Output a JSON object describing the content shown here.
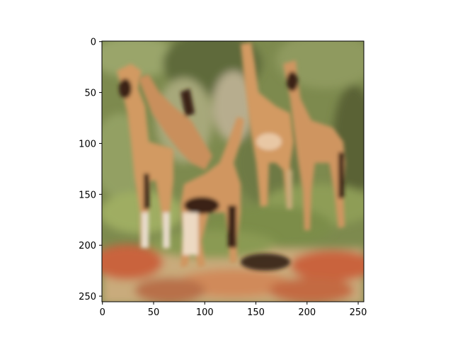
{
  "chart_data": {
    "type": "heatmap",
    "title": "",
    "xlabel": "",
    "ylabel": "",
    "xlim": [
      0,
      255
    ],
    "ylim": [
      255,
      0
    ],
    "y_axis_inverted": true,
    "grid": false,
    "legend": "none",
    "image_content": "blurry generated photo of several giraffes standing in green vegetation",
    "x_ticks": [
      {
        "value": 0,
        "label": "0"
      },
      {
        "value": 50,
        "label": "50"
      },
      {
        "value": 100,
        "label": "100"
      },
      {
        "value": 150,
        "label": "150"
      },
      {
        "value": 200,
        "label": "200"
      },
      {
        "value": 250,
        "label": "250"
      }
    ],
    "y_ticks": [
      {
        "value": 0,
        "label": "0"
      },
      {
        "value": 50,
        "label": "50"
      },
      {
        "value": 100,
        "label": "100"
      },
      {
        "value": 150,
        "label": "150"
      },
      {
        "value": 200,
        "label": "200"
      },
      {
        "value": 250,
        "label": "250"
      }
    ]
  },
  "colors": {
    "axis": "#000000",
    "background": "#ffffff",
    "foliage_dark": "#5f6b3a",
    "foliage_light": "#9aa56a",
    "giraffe_body": "#d29a62",
    "giraffe_light": "#e8c7a4",
    "giraffe_dark": "#3a2416",
    "ground_red": "#c9633c",
    "ground_sand": "#c9ab7c"
  }
}
